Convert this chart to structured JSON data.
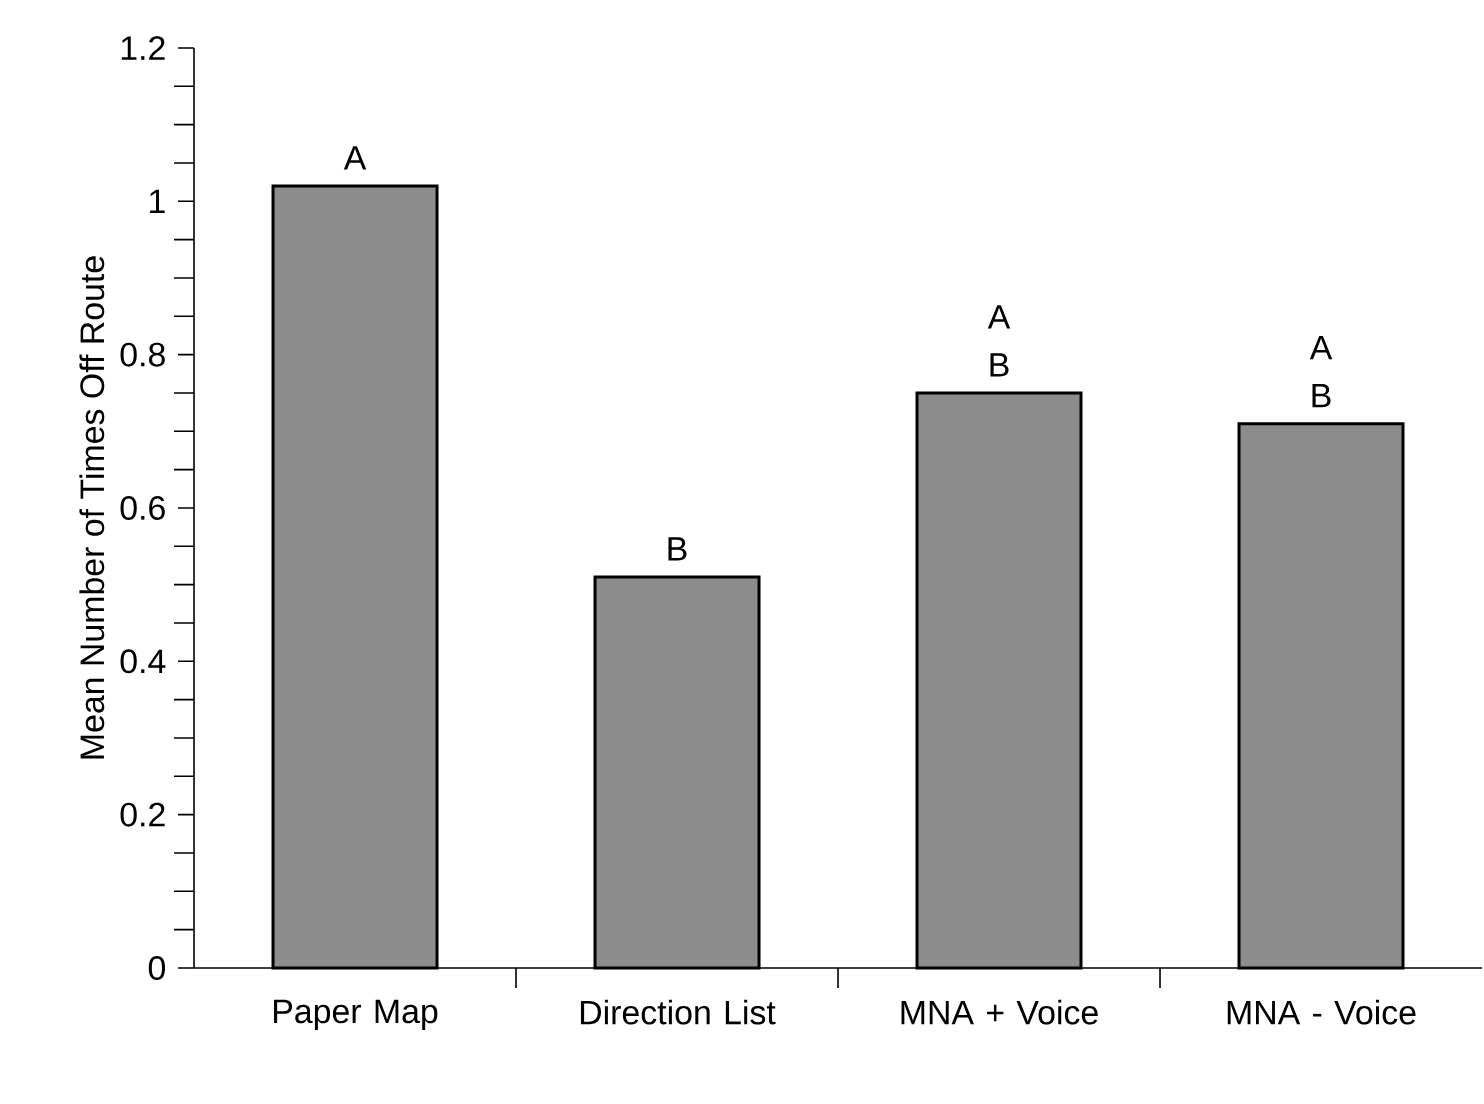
{
  "chart_data": {
    "type": "bar",
    "ylabel": "Mean Number of Times Off Route",
    "categories": [
      "Paper Map",
      "Direction List",
      "MNA + Voice",
      "MNA - Voice"
    ],
    "values": [
      1.02,
      0.51,
      0.75,
      0.71
    ],
    "color": "#8c8c8c",
    "ylim": [
      0,
      1.2
    ],
    "yticks": [
      0,
      0.2,
      0.4,
      0.6,
      0.8,
      1,
      1.2
    ],
    "grid": false,
    "annotations": [
      {
        "text": "A",
        "x": "Paper Map",
        "y": 1.02
      },
      {
        "text": "B",
        "x": "Direction List",
        "y": 0.51
      },
      {
        "text": "B",
        "x": "MNA + Voice",
        "y": 0.75
      },
      {
        "text": "A",
        "x": "MNA + Voice",
        "y": 0.75
      },
      {
        "text": "B",
        "x": "MNA - Voice",
        "y": 0.71
      },
      {
        "text": "A",
        "x": "MNA - Voice",
        "y": 0.71
      }
    ]
  }
}
